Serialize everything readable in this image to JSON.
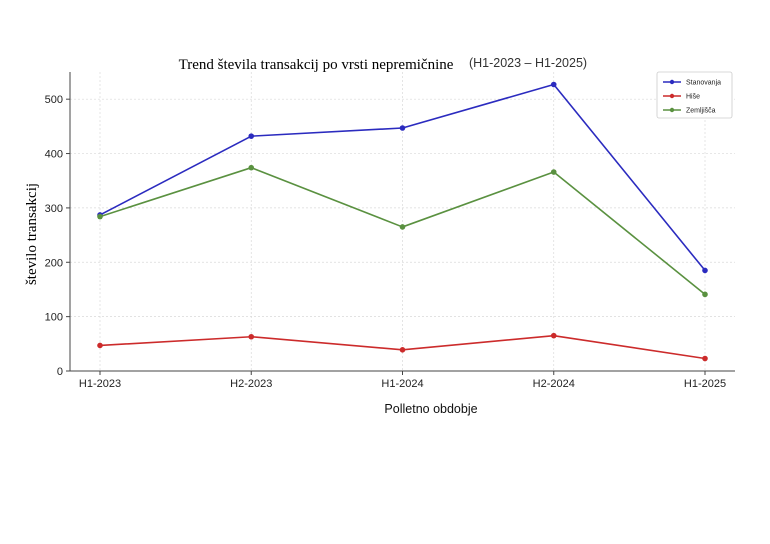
{
  "chart_data": {
    "type": "line",
    "title": "Trend števila transakcij po vrsti nepremičnine",
    "subtitle": "(H1-2023 – H1-2025)",
    "xlabel": "Polletno obdobje",
    "ylabel": "število transakcij",
    "categories": [
      "H1-2023",
      "H2-2023",
      "H1-2024",
      "H2-2024",
      "H1-2025"
    ],
    "ylim": [
      0,
      550
    ],
    "yticks": [
      0,
      100,
      200,
      300,
      400,
      500
    ],
    "grid": true,
    "legend_position": "top-right",
    "series": [
      {
        "name": "Stanovanja",
        "color": "#2b2bbf",
        "values": [
          287,
          432,
          447,
          527,
          185
        ]
      },
      {
        "name": "Hiše",
        "color": "#cc2b2b",
        "values": [
          47,
          63,
          39,
          65,
          23
        ]
      },
      {
        "name": "Zemljišča",
        "color": "#5a9140",
        "values": [
          284,
          374,
          265,
          366,
          141
        ]
      }
    ]
  }
}
